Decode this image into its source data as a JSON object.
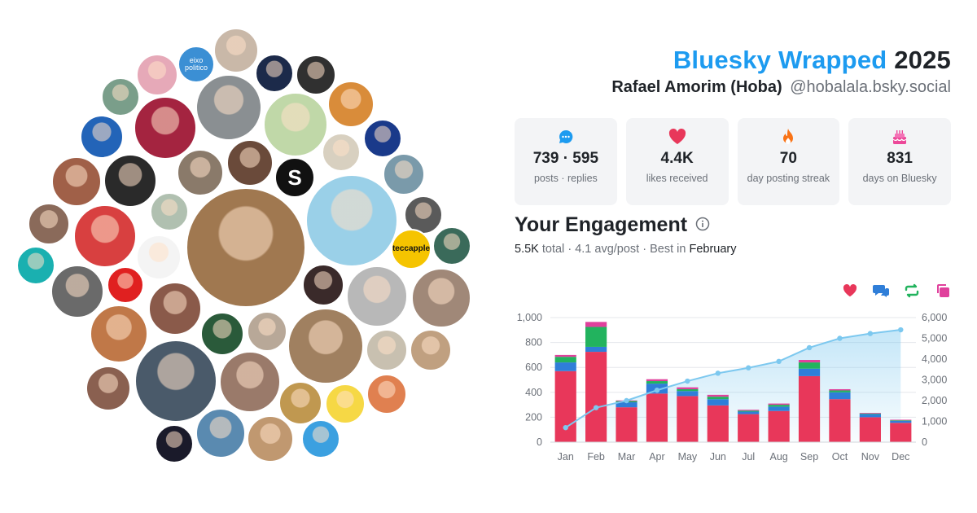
{
  "header": {
    "brand": "Bluesky Wrapped",
    "year": "2025",
    "name": "Rafael Amorim (Hoba)",
    "handle": "@hobalala.bsky.social"
  },
  "stats": [
    {
      "icon": "speech-bubble-icon",
      "value": "739 · 595",
      "label": "posts · replies"
    },
    {
      "icon": "heart-icon",
      "value": "4.4K",
      "label": "likes received"
    },
    {
      "icon": "flame-icon",
      "value": "70",
      "label": "day posting streak"
    },
    {
      "icon": "cake-icon",
      "value": "831",
      "label": "days on Bluesky"
    }
  ],
  "engagement": {
    "title": "Your Engagement",
    "total": "5.5K",
    "total_label": "total",
    "avg": "4.1 avg/post",
    "best_prefix": "Best in",
    "best_month": "February"
  },
  "avatar_labels": {
    "eixo": "eixo politico",
    "s": "S",
    "tecc": "teccapple"
  },
  "colors": {
    "likes": "#e8375a",
    "replies": "#2f7ed8",
    "reposts": "#22b35e",
    "quotes": "#e0409c",
    "cumulative": "#7cc8ef",
    "brand": "#1d9bf0"
  },
  "chart_data": {
    "type": "bar",
    "stacked": true,
    "categories": [
      "Jan",
      "Feb",
      "Mar",
      "Apr",
      "May",
      "Jun",
      "Jul",
      "Aug",
      "Sep",
      "Oct",
      "Nov",
      "Dec"
    ],
    "series": [
      {
        "icon": "heart-icon",
        "color": "#e8375a",
        "values": [
          570,
          725,
          280,
          390,
          370,
          295,
          225,
          250,
          530,
          345,
          200,
          155
        ]
      },
      {
        "icon": "reply-icon",
        "color": "#2f7ed8",
        "values": [
          70,
          40,
          40,
          80,
          40,
          50,
          20,
          35,
          60,
          55,
          25,
          15
        ]
      },
      {
        "icon": "repost-icon",
        "color": "#22b35e",
        "values": [
          45,
          160,
          10,
          20,
          15,
          20,
          8,
          15,
          50,
          15,
          5,
          5
        ]
      },
      {
        "icon": "quote-icon",
        "color": "#e0409c",
        "values": [
          15,
          40,
          5,
          15,
          15,
          15,
          7,
          10,
          20,
          10,
          5,
          5
        ]
      }
    ],
    "cumulative": [
      700,
      1660,
      2000,
      2500,
      2940,
      3320,
      3580,
      3890,
      4550,
      5000,
      5230,
      5410
    ],
    "ylim_left": [
      0,
      1000
    ],
    "yticks_left": [
      "0",
      "200",
      "400",
      "600",
      "800",
      "1,000"
    ],
    "ylim_right": [
      0,
      6000
    ],
    "yticks_right": [
      "0",
      "1,000",
      "2,000",
      "3,000",
      "4,000",
      "5,000",
      "6,000"
    ],
    "grid": true
  }
}
